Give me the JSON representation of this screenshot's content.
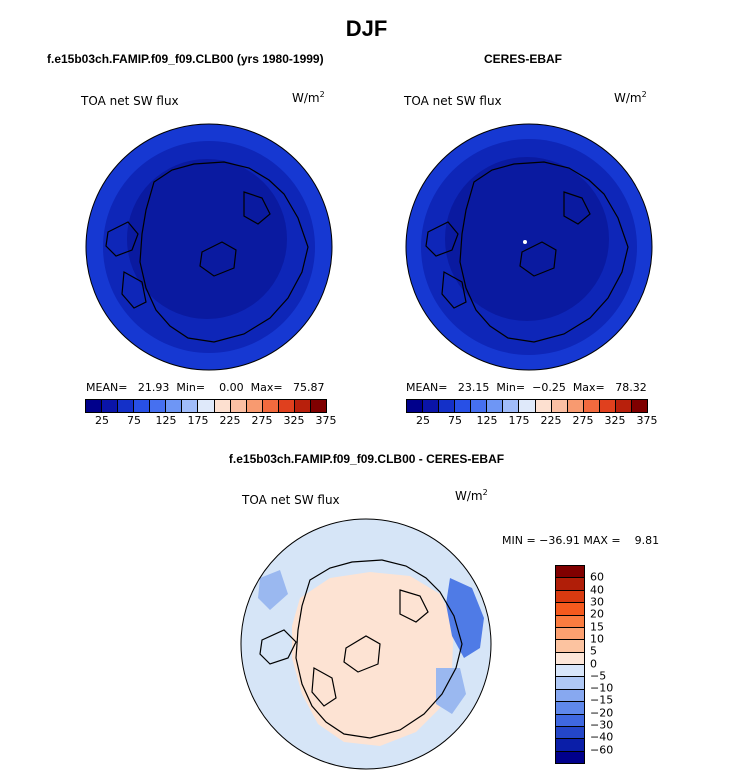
{
  "page": {
    "title": "DJF",
    "panels": [
      {
        "heading": "f.e15b03ch.FAMIP.f09_f09.CLB00 (yrs 1980-1999)",
        "field": "TOA net SW flux",
        "units_base": "W/m",
        "units_exp": "2",
        "stats": "MEAN=   21.93  Min=    0.00  Max=   75.87"
      },
      {
        "heading": "CERES-EBAF",
        "field": "TOA net SW flux",
        "units_base": "W/m",
        "units_exp": "2",
        "stats": "MEAN=   23.15  Min=  −0.25  Max=   78.32"
      }
    ],
    "diff": {
      "heading": "f.e15b03ch.FAMIP.f09_f09.CLB00 - CERES-EBAF",
      "field": "TOA net SW flux",
      "units_base": "W/m",
      "units_exp": "2",
      "stats": "MIN = −36.91 MAX =    9.81"
    }
  },
  "chart_data": [
    {
      "type": "heatmap",
      "projection": "north polar stereographic",
      "title": "f.e15b03ch.FAMIP.f09_f09.CLB00 (yrs 1980-1999)",
      "variable": "TOA net SW flux",
      "units": "W/m2",
      "mean": 21.93,
      "min": 0.0,
      "max": 75.87,
      "colorbar_ticks": [
        "25",
        "75",
        "125",
        "175",
        "225",
        "275",
        "325",
        "375"
      ],
      "colorbar_colors": [
        "#00008b",
        "#0a14a8",
        "#1430c8",
        "#2850e6",
        "#4670f0",
        "#6e96f5",
        "#a0bcfa",
        "#dfe9fa",
        "#fde0d0",
        "#fbbfa3",
        "#f89a70",
        "#f26a3e",
        "#e0401e",
        "#b8200c",
        "#7f0000"
      ]
    },
    {
      "type": "heatmap",
      "projection": "north polar stereographic",
      "title": "CERES-EBAF",
      "variable": "TOA net SW flux",
      "units": "W/m2",
      "mean": 23.15,
      "min": -0.25,
      "max": 78.32,
      "colorbar_ticks": [
        "25",
        "75",
        "125",
        "175",
        "225",
        "275",
        "325",
        "375"
      ],
      "colorbar_colors": [
        "#00008b",
        "#0a14a8",
        "#1430c8",
        "#2850e6",
        "#4670f0",
        "#6e96f5",
        "#a0bcfa",
        "#dfe9fa",
        "#fde0d0",
        "#fbbfa3",
        "#f89a70",
        "#f26a3e",
        "#e0401e",
        "#b8200c",
        "#7f0000"
      ]
    },
    {
      "type": "heatmap",
      "projection": "north polar stereographic",
      "title": "f.e15b03ch.FAMIP.f09_f09.CLB00 - CERES-EBAF",
      "variable": "TOA net SW flux",
      "units": "W/m2",
      "min": -36.91,
      "max": 9.81,
      "colorbar_ticks": [
        "60",
        "40",
        "30",
        "20",
        "15",
        "10",
        "5",
        "0",
        "−5",
        "−10",
        "−15",
        "−20",
        "−30",
        "−40",
        "−60"
      ],
      "colorbar_colors": [
        "#800000",
        "#b01e08",
        "#d83a10",
        "#f55a1e",
        "#fb7c40",
        "#fca070",
        "#fcc3a0",
        "#fde6d8",
        "#d8e6fa",
        "#afc8f5",
        "#87a8f0",
        "#5f88eb",
        "#3f68e0",
        "#2446c8",
        "#0a1ea8",
        "#00008b"
      ]
    }
  ]
}
